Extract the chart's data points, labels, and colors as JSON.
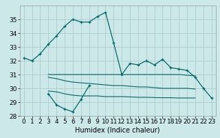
{
  "title": "",
  "xlabel": "Humidex (Indice chaleur)",
  "bg_color": "#cce8e8",
  "grid_color": "#aacccc",
  "line_color": "#006666",
  "main_line_x": [
    0,
    1,
    2,
    3,
    4,
    5,
    6,
    7,
    8,
    9,
    10,
    11,
    12,
    13,
    14,
    15,
    16,
    17,
    18,
    19,
    20,
    21,
    22,
    23
  ],
  "main_line_y": [
    32.2,
    32.0,
    32.5,
    33.2,
    33.8,
    34.5,
    35.0,
    34.8,
    34.8,
    35.2,
    35.5,
    33.3,
    31.0,
    31.8,
    31.7,
    32.0,
    31.7,
    32.1,
    31.5,
    31.4,
    31.3,
    30.8,
    30.0,
    29.3
  ],
  "low_line_x": [
    3,
    4,
    5,
    6,
    7,
    8
  ],
  "low_line_y": [
    29.6,
    28.8,
    28.5,
    28.3,
    29.2,
    30.2
  ],
  "flat1_x": [
    3,
    4,
    5,
    6,
    7,
    8,
    9,
    10,
    11,
    12,
    13,
    14,
    15,
    16,
    17,
    18,
    19,
    20,
    21
  ],
  "flat1_y": [
    31.0,
    31.0,
    31.0,
    31.0,
    31.0,
    31.0,
    31.0,
    31.0,
    31.0,
    31.0,
    31.0,
    31.0,
    31.0,
    31.0,
    31.0,
    31.0,
    31.0,
    30.95,
    30.9
  ],
  "flat2_x": [
    3,
    4,
    5,
    6,
    7,
    8,
    9,
    10,
    11,
    12,
    13,
    14,
    15,
    16,
    17,
    18,
    19,
    20,
    21
  ],
  "flat2_y": [
    30.8,
    30.7,
    30.55,
    30.45,
    30.4,
    30.35,
    30.3,
    30.25,
    30.2,
    30.2,
    30.15,
    30.1,
    30.1,
    30.05,
    30.0,
    30.0,
    30.0,
    30.0,
    29.95
  ],
  "flat3_x": [
    3,
    4,
    5,
    6,
    7,
    8,
    9,
    10,
    11,
    12,
    13,
    14,
    15,
    16,
    17,
    18,
    19,
    20,
    21
  ],
  "flat3_y": [
    29.8,
    29.75,
    29.6,
    29.5,
    29.45,
    29.45,
    29.45,
    29.4,
    29.4,
    29.4,
    29.38,
    29.35,
    29.35,
    29.33,
    29.32,
    29.32,
    29.3,
    29.3,
    29.3
  ],
  "ylim": [
    28,
    36
  ],
  "xlim": [
    -0.5,
    23.5
  ],
  "yticks": [
    28,
    29,
    30,
    31,
    32,
    33,
    34,
    35
  ],
  "xticks": [
    0,
    1,
    2,
    3,
    4,
    5,
    6,
    7,
    8,
    9,
    10,
    11,
    12,
    13,
    14,
    15,
    16,
    17,
    18,
    19,
    20,
    21,
    22,
    23
  ],
  "xlabel_fontsize": 7,
  "tick_fontsize": 6.5
}
